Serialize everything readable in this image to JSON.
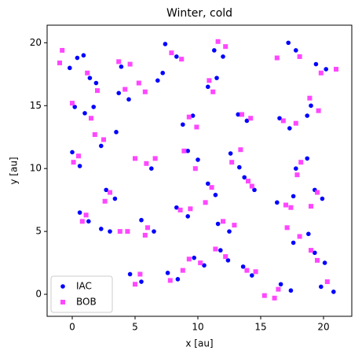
{
  "chart_data": {
    "type": "scatter",
    "title": "Winter, cold",
    "xlabel": "x [au]",
    "ylabel": "y [au]",
    "xlim": [
      -2,
      22.25
    ],
    "ylim": [
      -1.75,
      21.4
    ],
    "xticks": [
      0,
      5,
      10,
      15,
      20
    ],
    "yticks": [
      0,
      5,
      10,
      15,
      20
    ],
    "grid": false,
    "legend": "lower left",
    "series": [
      {
        "name": "IAC",
        "color": "#0000ff",
        "marker": "circle",
        "x": [
          -0.2,
          0.4,
          0.9,
          1.4,
          1.9,
          0.2,
          1.0,
          1.7,
          3.9,
          3.7,
          4.5,
          6.8,
          7.2,
          7.4,
          8.3,
          11.3,
          12.0,
          10.8,
          11.5,
          17.2,
          17.8,
          19.4,
          20.2,
          19.0,
          18.7,
          16.5,
          17.3,
          13.2,
          13.9,
          8.8,
          9.6,
          9.2,
          10.0,
          6.3,
          2.3,
          3.5,
          0.0,
          0.6,
          2.7,
          3.4,
          0.6,
          1.3,
          3.0,
          2.3,
          5.5,
          6.5,
          8.3,
          9.2,
          10.8,
          11.4,
          13.7,
          14.5,
          12.6,
          13.3,
          17.8,
          18.7,
          16.3,
          17.6,
          19.3,
          19.9,
          17.6,
          18.8,
          19.3,
          20.1,
          11.6,
          12.5,
          11.8,
          12.4,
          13.6,
          14.3,
          9.7,
          10.5,
          7.6,
          8.4,
          4.6,
          5.5,
          16.6,
          17.4,
          19.8,
          20.8
        ],
        "y": [
          18.0,
          18.8,
          19.0,
          17.2,
          16.8,
          14.9,
          14.4,
          14.9,
          18.1,
          16.0,
          15.5,
          17.0,
          17.6,
          19.9,
          18.9,
          19.4,
          18.9,
          16.5,
          17.2,
          20.0,
          19.4,
          18.3,
          17.9,
          15.0,
          14.2,
          14.0,
          13.2,
          14.3,
          13.8,
          13.5,
          14.2,
          11.4,
          10.7,
          10.0,
          11.8,
          12.9,
          11.3,
          10.2,
          8.3,
          7.6,
          6.5,
          5.8,
          5.0,
          5.2,
          5.9,
          5.0,
          6.9,
          6.2,
          8.8,
          7.9,
          9.3,
          8.3,
          11.2,
          10.1,
          10.0,
          10.8,
          7.3,
          7.8,
          8.3,
          7.6,
          4.1,
          4.8,
          3.3,
          2.5,
          5.6,
          5.0,
          3.5,
          2.7,
          2.2,
          1.5,
          2.9,
          2.3,
          1.7,
          1.2,
          1.6,
          1.0,
          0.8,
          0.3,
          0.6,
          0.2
        ]
      },
      {
        "name": "BOB",
        "color": "#ff33ff",
        "marker": "square",
        "x": [
          -1.0,
          -0.8,
          1.2,
          2.0,
          0.0,
          1.5,
          3.7,
          4.6,
          4.2,
          5.3,
          5.8,
          7.9,
          8.7,
          11.6,
          12.2,
          10.9,
          11.2,
          16.3,
          18.1,
          19.8,
          21.0,
          18.9,
          19.6,
          16.8,
          17.8,
          13.5,
          14.2,
          9.3,
          9.9,
          8.9,
          9.8,
          5.0,
          5.9,
          6.6,
          2.5,
          1.8,
          0.1,
          0.5,
          3.0,
          2.6,
          0.8,
          1.1,
          3.8,
          4.4,
          6.0,
          5.8,
          8.6,
          9.4,
          11.1,
          10.6,
          14.0,
          14.3,
          12.7,
          13.4,
          18.2,
          17.9,
          17.0,
          17.4,
          19.5,
          19.0,
          18.1,
          17.1,
          19.5,
          19.0,
          12.0,
          12.9,
          12.2,
          11.4,
          13.9,
          14.6,
          10.2,
          9.3,
          7.8,
          8.8,
          5.4,
          5.0,
          16.4,
          16.1,
          20.3,
          15.3
        ],
        "y": [
          18.4,
          19.4,
          17.6,
          16.2,
          15.2,
          14.0,
          18.5,
          18.3,
          16.3,
          16.8,
          16.1,
          19.2,
          18.7,
          20.1,
          19.7,
          17.0,
          16.1,
          18.8,
          18.9,
          17.6,
          17.9,
          15.6,
          14.6,
          13.8,
          13.6,
          14.3,
          14.0,
          14.1,
          13.3,
          11.4,
          10.0,
          10.8,
          10.4,
          10.8,
          12.3,
          12.7,
          10.5,
          11.0,
          8.1,
          7.4,
          5.8,
          6.3,
          5.0,
          5.0,
          5.3,
          4.7,
          6.7,
          6.8,
          8.5,
          7.3,
          9.0,
          8.6,
          10.5,
          11.5,
          10.5,
          9.5,
          7.1,
          6.9,
          8.1,
          7.0,
          4.6,
          5.3,
          2.7,
          3.5,
          5.8,
          5.5,
          3.0,
          3.6,
          1.9,
          1.8,
          2.5,
          2.8,
          1.1,
          1.9,
          1.6,
          0.8,
          0.4,
          -0.3,
          1.0,
          -0.1
        ]
      }
    ]
  }
}
